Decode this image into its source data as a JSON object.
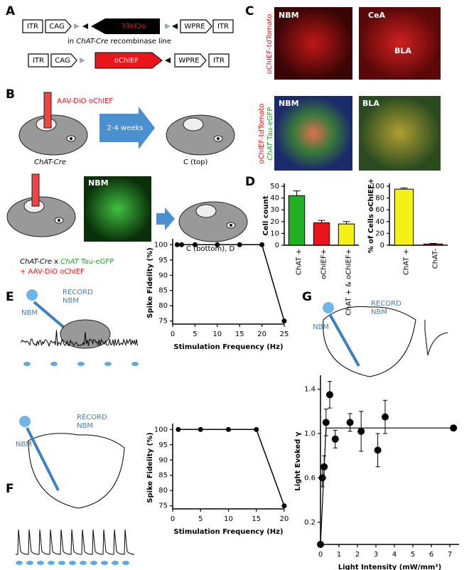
{
  "labels": [
    "A",
    "B",
    "C",
    "D",
    "E",
    "F",
    "G"
  ],
  "construct": {
    "top": [
      "ITR",
      "CAG",
      "oChIEF",
      "WPRE",
      "ITR"
    ],
    "note": [
      "in ",
      "ChAT-Cre",
      " recombinase line"
    ],
    "bottom": [
      "ITR",
      "CAG",
      "oChIEF",
      "WPRE",
      "ITR"
    ]
  },
  "injection": {
    "virus": "AAV-DiO oChIEF",
    "interval": "2-4 weeks",
    "mouse": "ChAT-Cre",
    "target_top": "C (top)",
    "image": "NBM",
    "cross": [
      "ChAT-Cre",
      " x ",
      "ChAT",
      " Tau-eGFP"
    ],
    "virus2": "+ AAV-DiO oChIEF",
    "target_bottom": "C (bottom), D"
  },
  "histology": {
    "stain": "oChIEF-tdTomato",
    "images": [
      "NBM",
      "CeA",
      "BLA",
      "NBM",
      "BLA"
    ],
    "costain": [
      "oChIEF-tdTomato",
      "ChAT",
      " Tau-eGFP"
    ]
  },
  "recording": {
    "E": {
      "stim": "NBM",
      "record": [
        "RECORD",
        "NBM"
      ]
    },
    "F": {
      "stim": "NBM",
      "record": [
        "RECORD",
        "NBM"
      ]
    },
    "G": {
      "stim": "NBM",
      "record": [
        "RECORD",
        "NBM"
      ]
    }
  },
  "chart_data": [
    {
      "type": "bar",
      "ylabel": "Cell count",
      "categories": [
        "ChAT +",
        "oChIEF+",
        "ChAT + & oChIEF+"
      ],
      "values": [
        42,
        19,
        18
      ],
      "errors": [
        4,
        2,
        2
      ],
      "colors": [
        "#22b022",
        "#e8151b",
        "#f5f01a"
      ],
      "ylim": [
        0,
        50
      ],
      "yticks": [
        0,
        10,
        20,
        30,
        40,
        50
      ]
    },
    {
      "type": "bar",
      "ylabel": "% of Cells oChIEF+",
      "categories": [
        "ChAT +",
        "ChAT-"
      ],
      "values": [
        95,
        2
      ],
      "errors": [
        2,
        1
      ],
      "colors": [
        "#f5f01a",
        "#e8151b"
      ],
      "ylim": [
        0,
        100
      ],
      "yticks": [
        0,
        20,
        40,
        60,
        80,
        100
      ]
    },
    {
      "type": "line",
      "xlabel": "Stimulation Frequency (Hz)",
      "ylabel": "Spike Fidelity (%)",
      "x": [
        1,
        2,
        5,
        10,
        15,
        20,
        25
      ],
      "values": [
        100,
        100,
        100,
        100,
        100,
        100,
        75
      ],
      "color": "#000000",
      "xlim": [
        0,
        25
      ],
      "xticks": [
        0,
        5,
        10,
        15,
        20,
        25
      ],
      "ylim": [
        74,
        101
      ],
      "yticks": [
        75,
        80,
        85,
        90,
        95,
        100
      ]
    },
    {
      "type": "line",
      "xlabel": "Stimulation Frequency (Hz)",
      "ylabel": "Spike Fidelity (%)",
      "x": [
        1,
        5,
        10,
        15,
        20
      ],
      "values": [
        100,
        100,
        100,
        100,
        75
      ],
      "color": "#000000",
      "xlim": [
        0,
        20
      ],
      "xticks": [
        0,
        5,
        10,
        15,
        20
      ],
      "ylim": [
        74,
        101
      ],
      "yticks": [
        75,
        80,
        85,
        90,
        95,
        100
      ]
    },
    {
      "type": "scatter",
      "xlabel": "Light Intensity (mW/mm²)",
      "ylabel": "Light Evoked γ",
      "x": [
        0,
        0.1,
        0.2,
        0.3,
        0.5,
        0.8,
        1.6,
        2.2,
        3.1,
        3.5,
        7.2
      ],
      "values": [
        0,
        0.6,
        0.7,
        1.1,
        1.35,
        0.95,
        1.1,
        1.02,
        0.85,
        1.15,
        1.05
      ],
      "errors": [
        0,
        0.08,
        0.1,
        0.12,
        0.12,
        0.08,
        0.08,
        0.18,
        0.15,
        0.15,
        0
      ],
      "color": "#000000",
      "fit": {
        "x": [
          0,
          0.3,
          7.2
        ],
        "values": [
          0,
          1.05,
          1.05
        ]
      },
      "xlim": [
        0,
        7.5
      ],
      "xticks": [
        0,
        1,
        2,
        3,
        4,
        5,
        6,
        7
      ],
      "ylim": [
        0,
        1.5
      ],
      "yticks": [
        {
          "value": 0.2,
          "label": "0.2"
        },
        {
          "value": 0.6,
          "label": "0.6"
        },
        {
          "value": 1,
          "label": "1.0"
        },
        {
          "value": 1.4,
          "label": "1.4"
        }
      ]
    }
  ]
}
